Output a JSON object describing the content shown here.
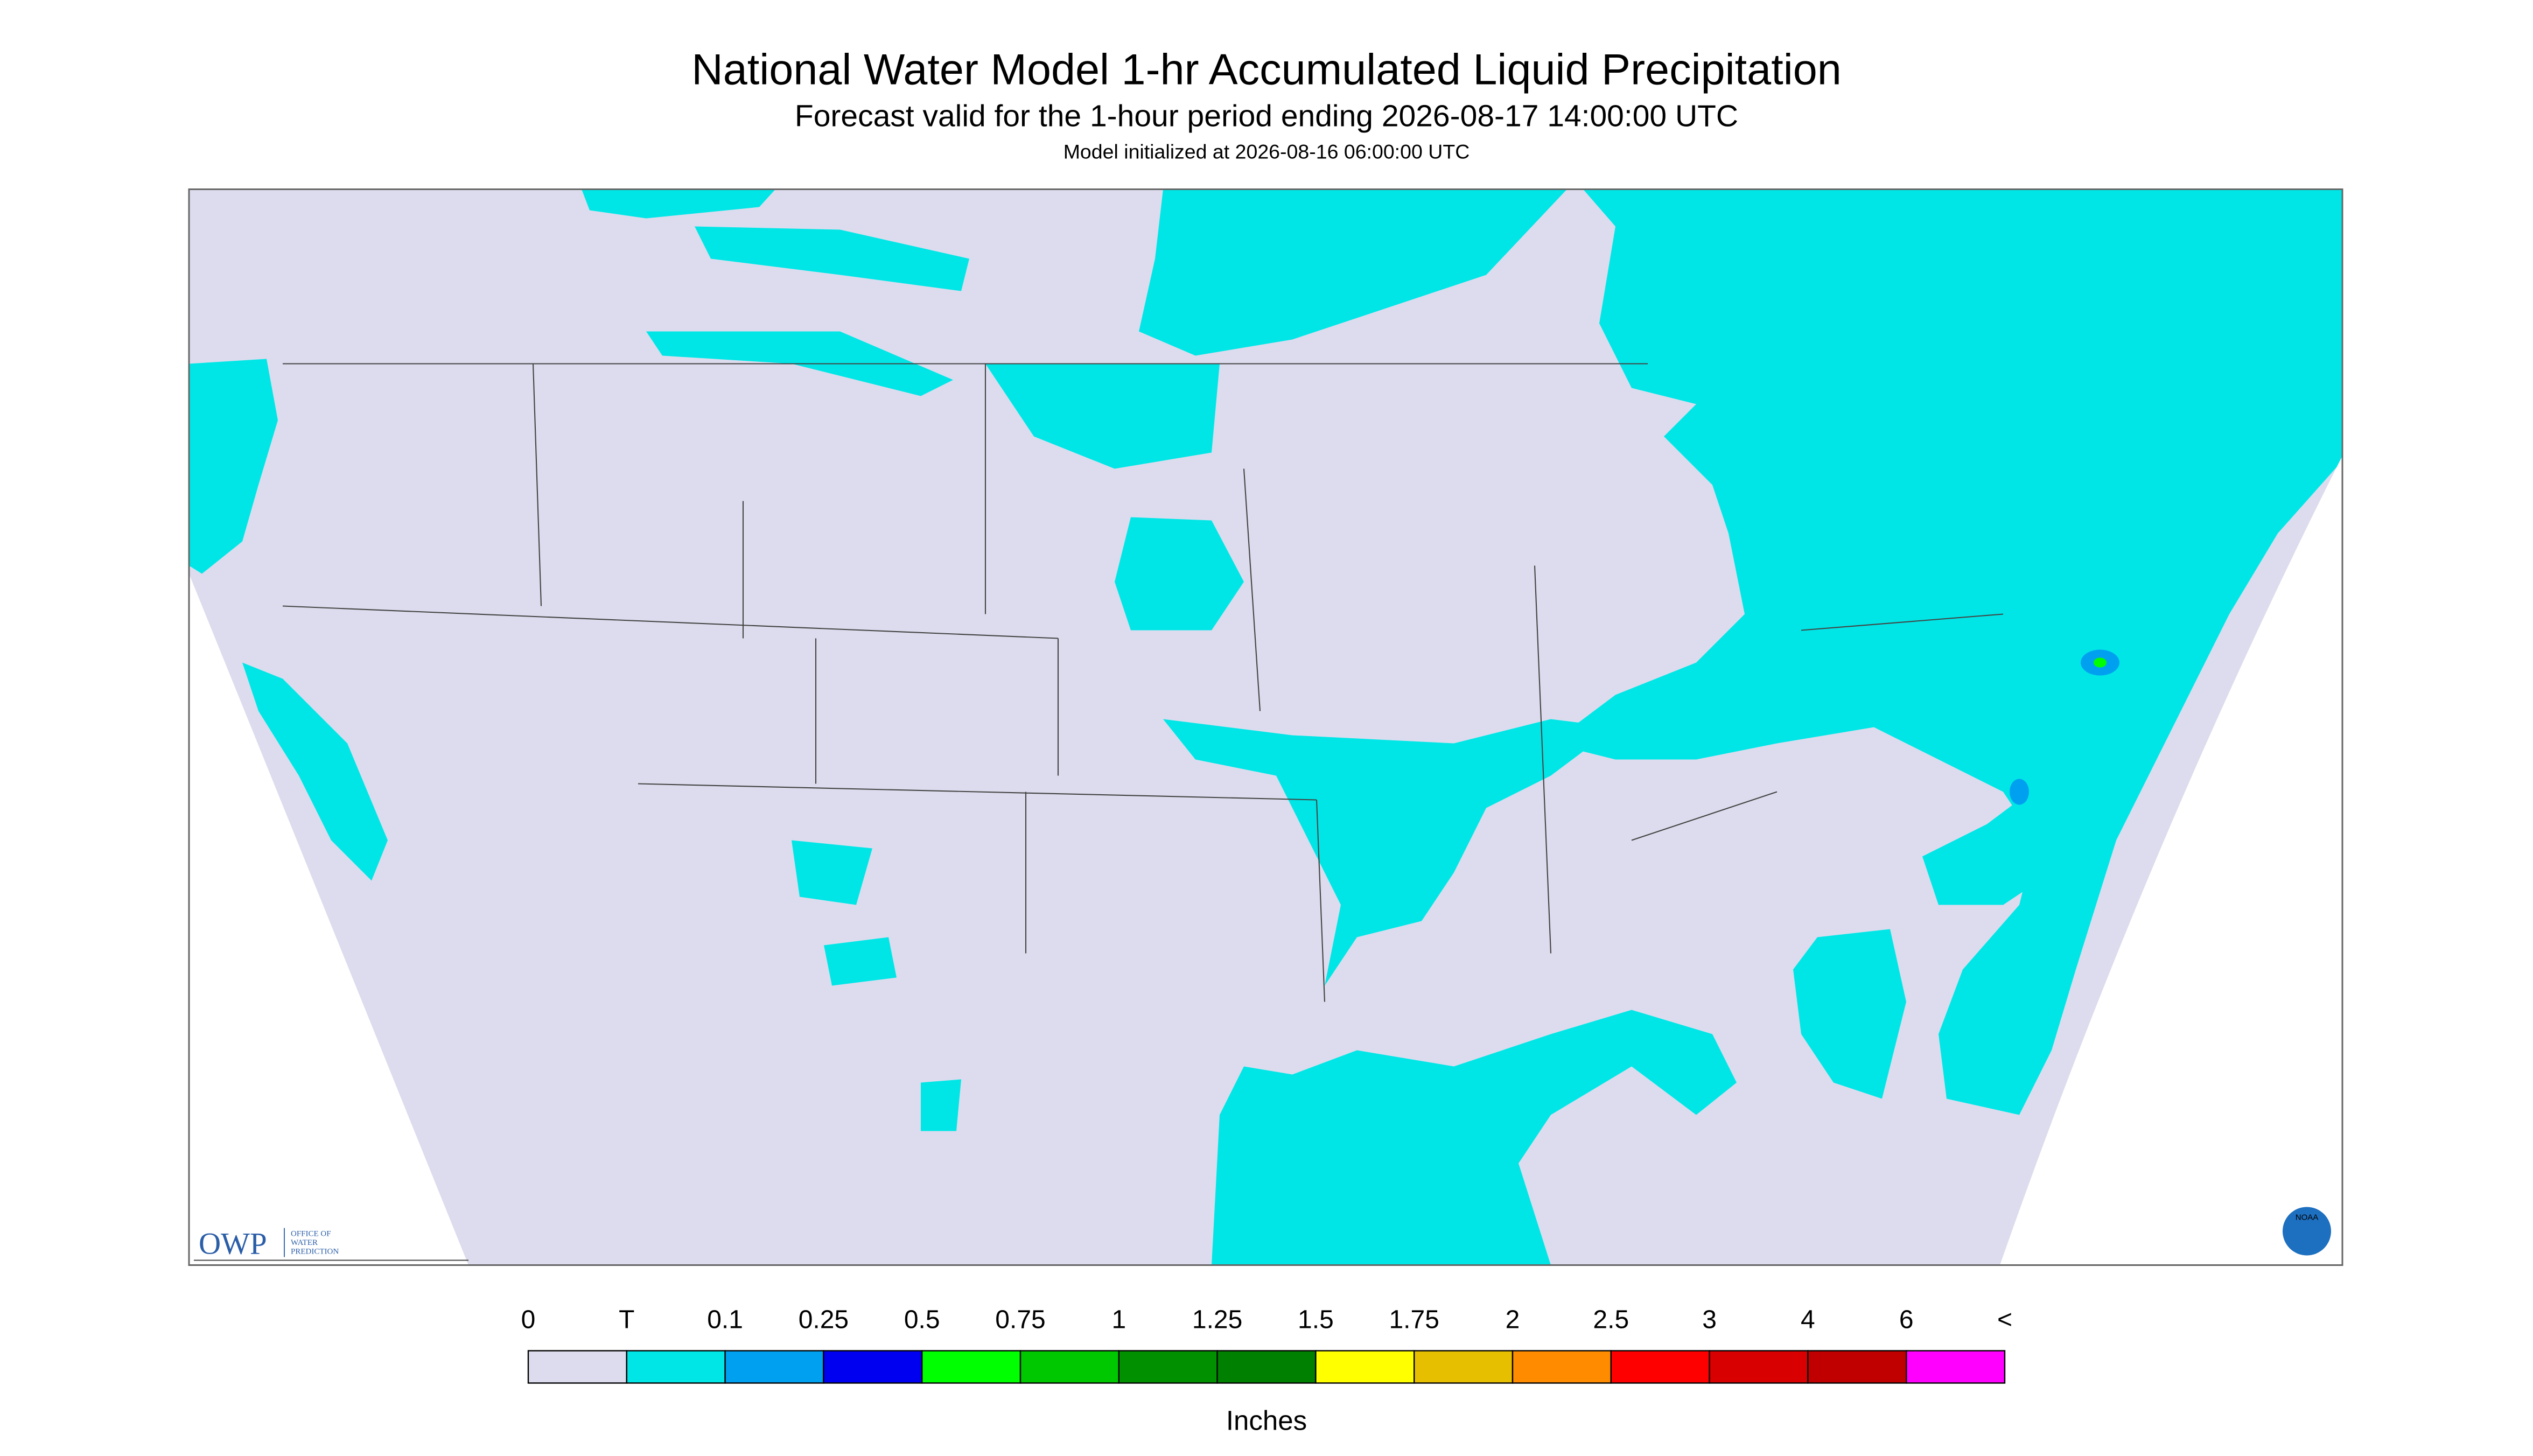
{
  "header": {
    "title": "National Water Model 1-hr Accumulated Liquid Precipitation",
    "subtitle": "Forecast valid for the 1-hour period ending 2026-08-17 14:00:00 UTC",
    "init": "Model initialized at 2026-08-16 06:00:00 UTC"
  },
  "logos": {
    "owp": "OWP",
    "owp_name": [
      "OFFICE OF",
      "WATER",
      "PREDICTION"
    ],
    "noaa": "NOAA"
  },
  "colorbar": {
    "ticks": [
      "0",
      "T",
      "0.1",
      "0.25",
      "0.5",
      "0.75",
      "1",
      "1.25",
      "1.5",
      "1.75",
      "2",
      "2.5",
      "3",
      "4",
      "6",
      "<"
    ],
    "colors": [
      "#dcdcee",
      "#00e6e6",
      "#00a0f0",
      "#0000f0",
      "#00ff00",
      "#00c800",
      "#009000",
      "#008000",
      "#ffff00",
      "#e6c000",
      "#ff8c00",
      "#ff0000",
      "#d80000",
      "#c00000",
      "#ff00ff",
      "#9955c9"
    ],
    "label": "Inches"
  }
}
